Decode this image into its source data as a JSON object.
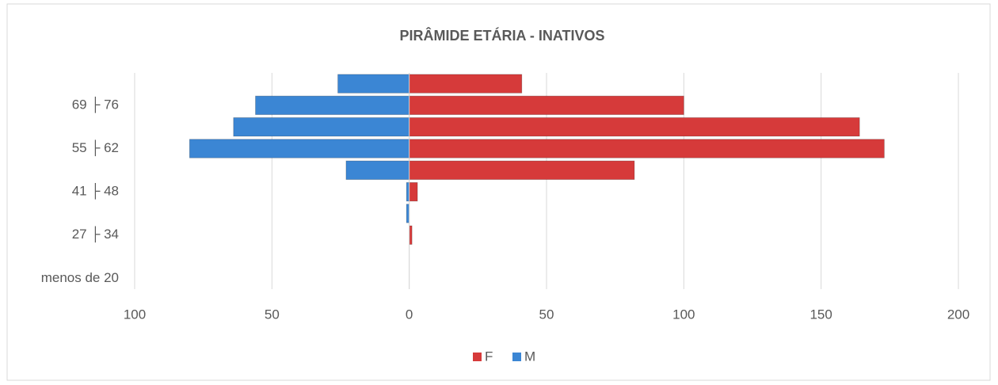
{
  "chart_data": {
    "type": "bar",
    "orientation": "horizontal",
    "title": "PIRÂMIDE ETÁRIA - INATIVOS",
    "categories": [
      "menos de 20",
      null,
      "27 ├ 34",
      null,
      "41 ├ 48",
      null,
      "55 ├ 62",
      null,
      "69 ├ 76",
      null
    ],
    "series": [
      {
        "name": "F",
        "color": "#d63a3a",
        "values": [
          0,
          0,
          1,
          0,
          3,
          82,
          173,
          164,
          100,
          41
        ]
      },
      {
        "name": "M",
        "color": "#3b86d4",
        "values": [
          0,
          0,
          0,
          -1,
          -1,
          -23,
          -80,
          -64,
          -56,
          -26
        ]
      }
    ],
    "xlim": [
      -100,
      200
    ],
    "xticks": [
      {
        "value": -100,
        "label": "100"
      },
      {
        "value": -50,
        "label": "50"
      },
      0,
      50,
      100,
      150,
      200
    ],
    "grid": true,
    "legend": "bottom"
  }
}
